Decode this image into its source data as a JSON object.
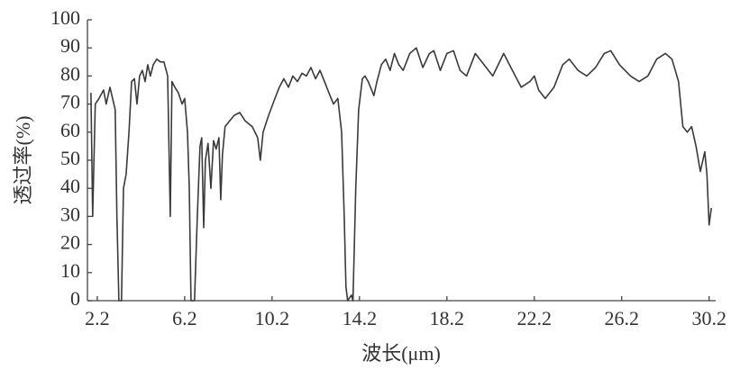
{
  "chart_data": {
    "type": "line",
    "xlabel": "波长(μm)",
    "ylabel": "透过率(%)",
    "color": "#3a3a3a",
    "xlim": [
      1.75,
      30.5
    ],
    "ylim": [
      0,
      100
    ],
    "xticks": [
      2.2,
      6.2,
      10.2,
      14.2,
      18.2,
      22.2,
      26.2,
      30.2
    ],
    "yticks": [
      0,
      10,
      20,
      30,
      40,
      50,
      60,
      70,
      80,
      90,
      100
    ],
    "x": [
      1.91,
      1.99,
      2.11,
      2.28,
      2.49,
      2.61,
      2.78,
      2.9,
      3.02,
      3.1,
      3.19,
      3.31,
      3.4,
      3.52,
      3.65,
      3.77,
      3.9,
      4.02,
      4.14,
      4.26,
      4.39,
      4.51,
      4.63,
      4.76,
      4.92,
      5.09,
      5.25,
      5.42,
      5.54,
      5.62,
      5.75,
      5.91,
      6.08,
      6.2,
      6.33,
      6.41,
      6.49,
      6.65,
      6.78,
      6.9,
      6.98,
      7.07,
      7.15,
      7.27,
      7.4,
      7.52,
      7.64,
      7.77,
      7.85,
      7.93,
      8.05,
      8.26,
      8.47,
      8.72,
      8.97,
      9.29,
      9.54,
      9.66,
      9.79,
      10.04,
      10.33,
      10.53,
      10.74,
      10.95,
      11.15,
      11.36,
      11.57,
      11.77,
      11.98,
      12.19,
      12.39,
      12.6,
      12.8,
      13.01,
      13.21,
      13.38,
      13.5,
      13.58,
      13.66,
      13.83,
      13.9,
      14.03,
      14.16,
      14.33,
      14.45,
      14.6,
      14.86,
      15.0,
      15.2,
      15.4,
      15.6,
      15.8,
      16.0,
      16.2,
      16.5,
      16.8,
      17.1,
      17.4,
      17.6,
      17.9,
      18.2,
      18.5,
      18.8,
      19.1,
      19.5,
      19.9,
      20.3,
      20.8,
      21.2,
      21.6,
      22.0,
      22.2,
      22.4,
      22.7,
      23.1,
      23.5,
      23.8,
      24.2,
      24.6,
      25.0,
      25.4,
      25.7,
      26.1,
      26.6,
      27.0,
      27.4,
      27.8,
      28.2,
      28.5,
      28.8,
      29.0,
      29.2,
      29.4,
      29.6,
      29.8,
      30.0,
      30.1,
      30.2,
      30.3
    ],
    "values": [
      74,
      30,
      70,
      72,
      75,
      70,
      76,
      72,
      68,
      30,
      0,
      0,
      40,
      45,
      60,
      78,
      79,
      70,
      80,
      82,
      78,
      84,
      80,
      84,
      86,
      85,
      85,
      80,
      30,
      78,
      76,
      74,
      70,
      72,
      60,
      40,
      0,
      0,
      30,
      55,
      58,
      26,
      50,
      56,
      40,
      57,
      54,
      58,
      36,
      52,
      62,
      64,
      66,
      67,
      64,
      62,
      58,
      50,
      60,
      66,
      72,
      76,
      79,
      76,
      80,
      78,
      81,
      80,
      83,
      79,
      82,
      78,
      74,
      70,
      72,
      60,
      30,
      5,
      0,
      2,
      0,
      40,
      68,
      79,
      80,
      78,
      73,
      78,
      84,
      86,
      82,
      88,
      84,
      82,
      88,
      90,
      83,
      88,
      89,
      82,
      88,
      89,
      82,
      80,
      88,
      84,
      80,
      88,
      82,
      76,
      78,
      80,
      75,
      72,
      76,
      84,
      86,
      82,
      80,
      83,
      88,
      89,
      84,
      80,
      78,
      80,
      86,
      88,
      86,
      78,
      62,
      60,
      62,
      55,
      46,
      53,
      45,
      27,
      33
    ]
  }
}
